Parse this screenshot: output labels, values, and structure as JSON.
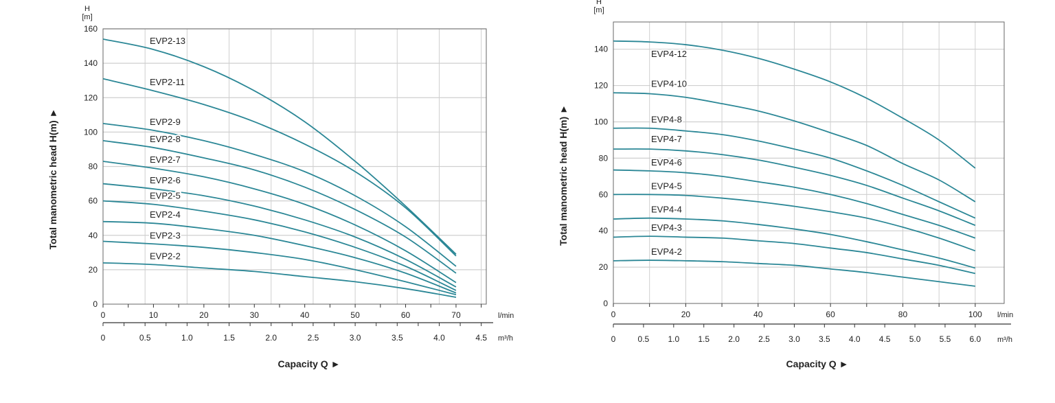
{
  "colors": {
    "curve": "#2b8796",
    "grid": "#cfcfcf",
    "axis": "#333333"
  },
  "chart_data": [
    {
      "type": "line",
      "h_label": "H",
      "h_unit": "[m]",
      "ylabel": "Total manometric head H(m) ►",
      "xlabel": "Capacity Q ►",
      "x_unit": "l/min",
      "x2_unit": "m³/h",
      "xlim": [
        0,
        76
      ],
      "ylim": [
        0,
        160
      ],
      "yticks": [
        0,
        20,
        40,
        60,
        80,
        100,
        120,
        140,
        160
      ],
      "xticks": [
        0,
        10,
        20,
        30,
        40,
        50,
        60,
        70
      ],
      "x2ticks": [
        "0",
        "0.5",
        "1.0",
        "1.5",
        "2.0",
        "2.5",
        "3.0",
        "3.5",
        "4.0",
        "4.5"
      ],
      "x": [
        0,
        10,
        20,
        30,
        40,
        50,
        60,
        70
      ],
      "series": [
        {
          "name": "EVP2-13",
          "values": [
            154,
            148,
            138,
            124,
            106,
            83,
            57,
            29
          ]
        },
        {
          "name": "EVP2-11",
          "values": [
            131,
            124,
            116,
            106,
            93,
            77,
            56,
            28
          ]
        },
        {
          "name": "EVP2-9",
          "values": [
            105,
            101,
            95,
            87,
            77,
            63,
            45,
            22
          ]
        },
        {
          "name": "EVP2-8",
          "values": [
            95,
            91,
            85,
            78,
            68,
            55,
            39,
            18
          ]
        },
        {
          "name": "EVP2-7",
          "values": [
            83,
            79,
            74,
            67,
            58,
            46,
            31,
            12.5
          ]
        },
        {
          "name": "EVP2-6",
          "values": [
            70,
            67,
            63,
            57,
            49,
            39,
            26,
            10
          ]
        },
        {
          "name": "EVP2-5",
          "values": [
            60,
            58,
            54,
            49,
            42,
            33,
            22,
            8
          ]
        },
        {
          "name": "EVP2-4",
          "values": [
            48,
            47,
            44,
            40,
            34,
            27,
            18,
            6.5
          ]
        },
        {
          "name": "EVP2-3",
          "values": [
            36.5,
            35,
            33,
            30,
            26,
            20,
            13,
            5.5
          ]
        },
        {
          "name": "EVP2-2",
          "values": [
            24,
            23,
            21,
            19,
            16,
            13,
            9,
            4
          ]
        }
      ]
    },
    {
      "type": "line",
      "h_label": "H",
      "h_unit": "[m]",
      "ylabel": "Total manometric head H(m) ►",
      "xlabel": "Capacity Q ►",
      "x_unit": "l/min",
      "x2_unit": "m³/h",
      "xlim": [
        0,
        108
      ],
      "ylim": [
        0,
        155
      ],
      "yticks": [
        0,
        20,
        40,
        60,
        80,
        100,
        120,
        140
      ],
      "xticks": [
        0,
        20,
        40,
        60,
        80,
        100
      ],
      "x2ticks": [
        "0",
        "0.5",
        "1.0",
        "1.5",
        "2.0",
        "2.5",
        "3.0",
        "3.5",
        "4.0",
        "4.5",
        "5.0",
        "5.5",
        "6.0"
      ],
      "x": [
        0,
        10,
        20,
        30,
        40,
        50,
        60,
        70,
        80,
        90,
        100
      ],
      "series": [
        {
          "name": "EVP4-12",
          "values": [
            144.5,
            144,
            142.5,
            139.5,
            135,
            129,
            122,
            113,
            102,
            90,
            74.5
          ]
        },
        {
          "name": "EVP4-10",
          "values": [
            116,
            115.5,
            113.5,
            110,
            106,
            100.5,
            94,
            87,
            77,
            68,
            56
          ]
        },
        {
          "name": "EVP4-8",
          "values": [
            96.5,
            96.5,
            95,
            93,
            89.5,
            85,
            80,
            73,
            65,
            56,
            47
          ]
        },
        {
          "name": "EVP4-7",
          "values": [
            85,
            85,
            84,
            82,
            79,
            75,
            70.5,
            65,
            58,
            51,
            43
          ]
        },
        {
          "name": "EVP4-6",
          "values": [
            73.5,
            73,
            72,
            70,
            67,
            64,
            60,
            55,
            49,
            43,
            36
          ]
        },
        {
          "name": "EVP4-5",
          "values": [
            60,
            60,
            59.5,
            58,
            56,
            53.5,
            50.5,
            47,
            42,
            36,
            29
          ]
        },
        {
          "name": "EVP4-4",
          "values": [
            46.5,
            47,
            46.5,
            45.5,
            43.5,
            41,
            38,
            34,
            29.5,
            25,
            19.5
          ]
        },
        {
          "name": "EVP4-3",
          "values": [
            36.5,
            37,
            36.5,
            36,
            34.5,
            33,
            30.5,
            28,
            24.5,
            21,
            16.5
          ]
        },
        {
          "name": "EVP4-2",
          "values": [
            23.5,
            23.8,
            23.5,
            23,
            22,
            21,
            19,
            17,
            14.5,
            12,
            9.5
          ]
        }
      ]
    }
  ]
}
